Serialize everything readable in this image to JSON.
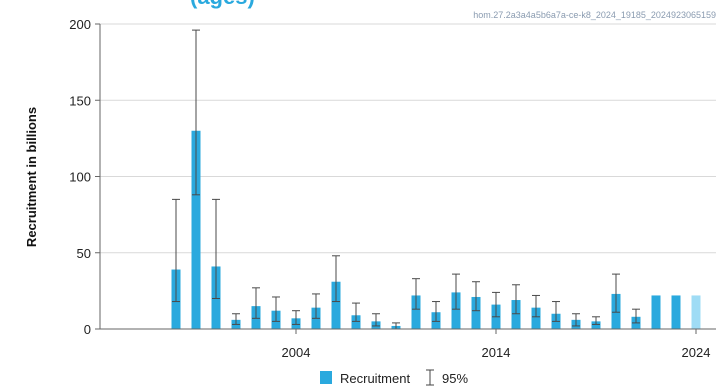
{
  "chart_data": {
    "type": "bar",
    "title_fragment": "(ages)",
    "stamp": "hom.27.2a3a4a5b6a7a-ce-k8_2024_19185_2024923065159",
    "ylabel": "Recruitment in billions",
    "xlabel": "",
    "ylim": [
      0,
      200
    ],
    "xlim": [
      1994.2,
      2025
    ],
    "y_ticks": [
      0,
      50,
      100,
      150,
      200
    ],
    "x_ticks": [
      2004,
      2014,
      2024
    ],
    "grid": "horizontal",
    "series": [
      {
        "name": "Recruitment",
        "color": "#2aa9de",
        "x": [
          1998,
          1999,
          2000,
          2001,
          2002,
          2003,
          2004,
          2005,
          2006,
          2007,
          2008,
          2009,
          2010,
          2011,
          2012,
          2013,
          2014,
          2015,
          2016,
          2017,
          2018,
          2019,
          2020,
          2021,
          2022,
          2023
        ],
        "values": [
          39,
          130,
          41,
          6,
          15,
          12,
          7,
          14,
          31,
          9,
          5,
          2,
          22,
          11,
          24,
          21,
          16,
          19,
          14,
          10,
          6,
          5,
          23,
          8,
          22,
          22
        ],
        "lower": [
          18,
          88,
          20,
          3,
          7,
          5,
          3,
          7,
          18,
          5,
          2,
          0,
          13,
          5,
          13,
          12,
          8,
          10,
          8,
          5,
          2,
          3,
          11,
          4,
          null,
          null
        ],
        "upper": [
          85,
          196,
          85,
          10,
          27,
          21,
          12,
          23,
          48,
          17,
          10,
          4,
          33,
          18,
          36,
          31,
          24,
          29,
          22,
          18,
          10,
          8,
          36,
          13,
          null,
          null
        ]
      }
    ],
    "highlight": {
      "x": 2024,
      "value": 22,
      "color": "#9fdcf5"
    },
    "legend": {
      "position": "bottom-center",
      "entries": [
        {
          "label": "Recruitment",
          "kind": "bar",
          "color": "#2aa9de"
        },
        {
          "label": "95%",
          "kind": "errorbar"
        }
      ]
    }
  }
}
